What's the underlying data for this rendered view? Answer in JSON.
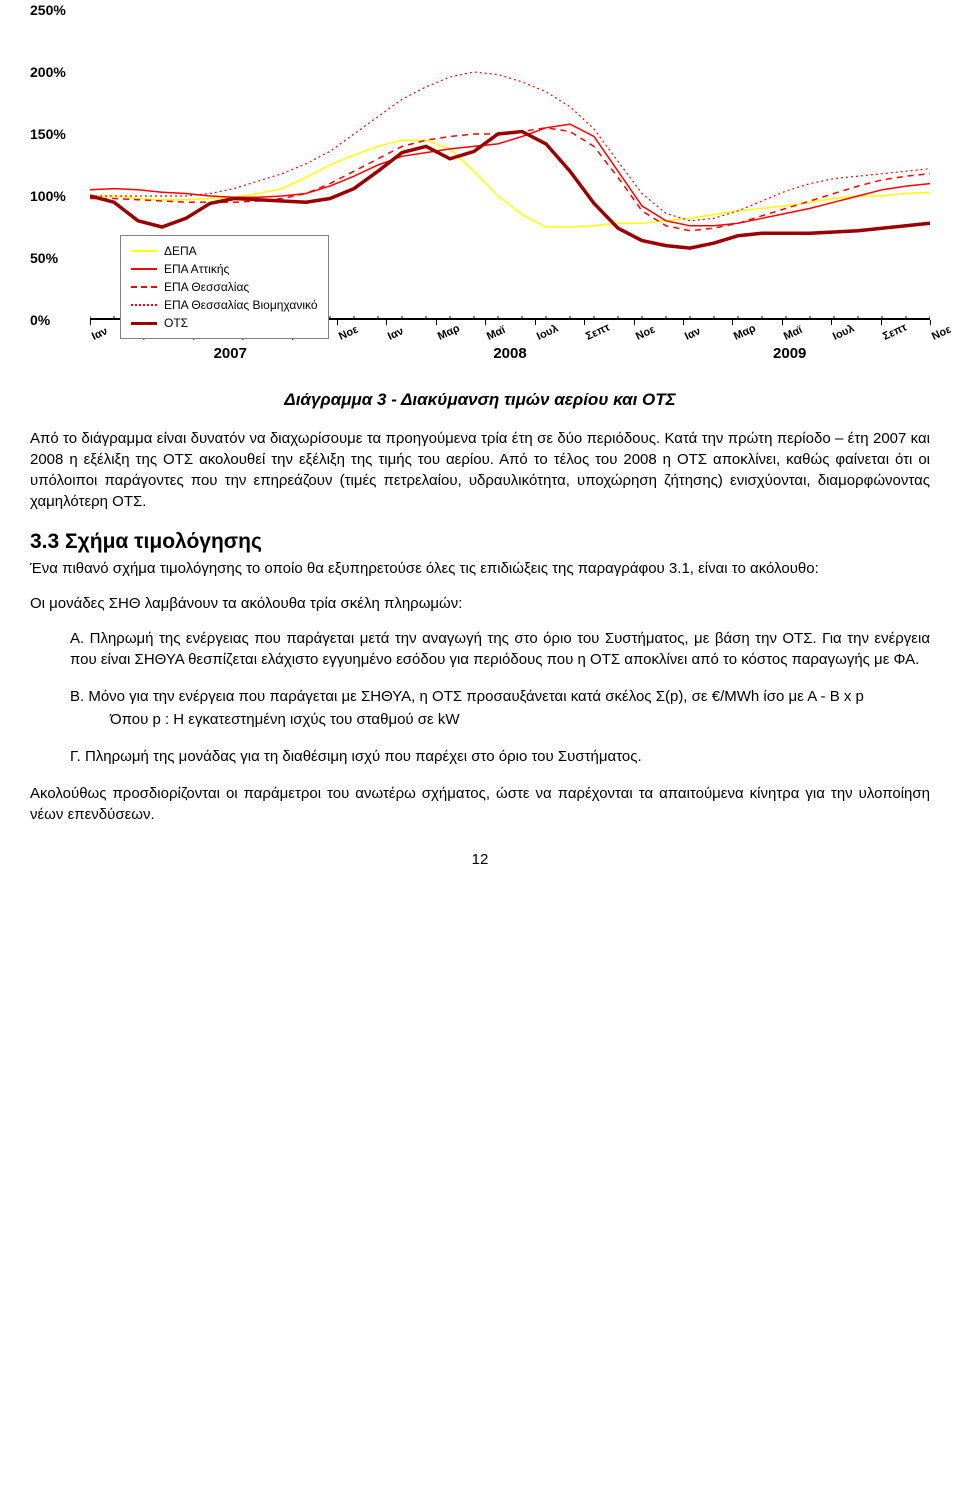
{
  "chart": {
    "type": "line",
    "ylim": [
      0,
      250
    ],
    "yticks": [
      0,
      50,
      100,
      150,
      200,
      250
    ],
    "ytick_labels": [
      "0%",
      "50%",
      "100%",
      "150%",
      "200%",
      "250%"
    ],
    "tick_fontsize": 14,
    "x_categories": [
      "Ιαν",
      "Μαρ",
      "Μαϊ",
      "Ιουλ",
      "Σεπτ",
      "Νοε",
      "Ιαν",
      "Μαρ",
      "Μαϊ",
      "Ιουλ",
      "Σεπτ",
      "Νοε",
      "Ιαν",
      "Μαρ",
      "Μαϊ",
      "Ιουλ",
      "Σεπτ",
      "Νοε"
    ],
    "years": [
      "2007",
      "2008",
      "2009"
    ],
    "year_positions_pct": [
      16.7,
      50,
      83.3
    ],
    "background_color": "#ffffff",
    "axis_color": "#000000",
    "y_tick_positions_pct": [
      100,
      80,
      60,
      40,
      20,
      0
    ],
    "series": [
      {
        "name": "ΔΕΠΑ",
        "color": "#ffff00",
        "dash": "solid",
        "width": 1.5,
        "values": [
          100,
          100,
          98,
          97,
          97,
          98,
          99,
          102,
          106,
          115,
          125,
          133,
          140,
          145,
          145,
          138,
          120,
          100,
          85,
          75,
          75,
          76,
          78,
          78,
          80,
          82,
          85,
          88,
          90,
          92,
          95,
          98,
          100,
          100,
          102,
          103
        ]
      },
      {
        "name": "ΕΠΑ Αττικής",
        "color": "#ff0000",
        "dash": "solid",
        "width": 1.5,
        "values": [
          105,
          106,
          105,
          103,
          102,
          100,
          99,
          99,
          100,
          102,
          108,
          116,
          125,
          132,
          135,
          138,
          140,
          142,
          148,
          155,
          158,
          148,
          120,
          92,
          80,
          76,
          76,
          78,
          82,
          86,
          90,
          95,
          100,
          105,
          108,
          110
        ]
      },
      {
        "name": "ΕΠΑ Θεσσαλίας",
        "color": "#ff0000",
        "dash": "6,5",
        "width": 1.5,
        "values": [
          98,
          98,
          97,
          96,
          95,
          95,
          95,
          96,
          98,
          102,
          110,
          120,
          130,
          140,
          145,
          148,
          150,
          150,
          152,
          155,
          152,
          140,
          115,
          88,
          76,
          72,
          74,
          78,
          84,
          90,
          96,
          102,
          108,
          113,
          116,
          118
        ]
      },
      {
        "name": "ΕΠΑ Θεσσαλίας Βιομηχανικό",
        "color": "#ff0000",
        "dash": "2,3",
        "width": 1.2,
        "values": [
          100,
          100,
          100,
          100,
          100,
          102,
          106,
          112,
          118,
          126,
          136,
          150,
          164,
          178,
          188,
          196,
          200,
          198,
          192,
          184,
          172,
          154,
          128,
          102,
          86,
          80,
          82,
          88,
          96,
          104,
          110,
          114,
          116,
          118,
          120,
          122
        ]
      },
      {
        "name": "ΟΤΣ",
        "color": "#990000",
        "dash": "solid",
        "width": 3.5,
        "values": [
          100,
          95,
          80,
          75,
          82,
          94,
          98,
          97,
          96,
          95,
          98,
          106,
          120,
          135,
          140,
          130,
          136,
          150,
          152,
          142,
          120,
          94,
          74,
          64,
          60,
          58,
          62,
          68,
          70,
          70,
          70,
          71,
          72,
          74,
          76,
          78
        ]
      }
    ]
  },
  "caption": "Διάγραμμα 3 - Διακύμανση τιμών αερίου και ΟΤΣ",
  "para1": "Από το διάγραμμα είναι δυνατόν να διαχωρίσουμε τα προηγούμενα τρία έτη σε δύο περιόδους. Κατά την πρώτη περίοδο – έτη 2007 και 2008 η εξέλιξη της ΟΤΣ ακολουθεί την εξέλιξη της τιμής του αερίου. Από το τέλος του 2008 η ΟΤΣ αποκλίνει, καθώς φαίνεται ότι οι υπόλοιποι παράγοντες που την επηρεάζουν (τιμές πετρελαίου, υδραυλικότητα, υποχώρηση ζήτησης) ενισχύονται, διαμορφώνοντας χαμηλότερη ΟΤΣ.",
  "section": {
    "number": "3.3",
    "title": "Σχήμα τιμολόγησης",
    "intro": "Ένα πιθανό σχήμα τιμολόγησης το οποίο θα εξυπηρετούσε όλες τις επιδιώξεις της παραγράφου 3.1, είναι το ακόλουθο:",
    "lead": "Οι μονάδες ΣΗΘ λαμβάνουν τα ακόλουθα τρία σκέλη πληρωμών:",
    "itemA": "Α. Πληρωμή της ενέργειας που παράγεται μετά την αναγωγή της στο όριο του Συστήματος, με βάση την ΟΤΣ. Για την ενέργεια που είναι ΣΗΘΥΑ θεσπίζεται ελάχιστο εγγυημένο εσόδου για περιόδους που η ΟΤΣ αποκλίνει από το κόστος παραγωγής με ΦΑ.",
    "itemB": "Β. Μόνο για την ενέργεια που παράγεται με ΣΗΘΥΑ, η ΟΤΣ προσαυξάνεται κατά σκέλος Σ(p), σε €/MWh ίσο με Α - Β x p",
    "itemB_sub": "Όπου p : Η εγκατεστημένη ισχύς του σταθμού σε kW",
    "itemC": "Γ. Πληρωμή της μονάδας για τη διαθέσιμη ισχύ που παρέχει στο όριο του Συστήματος.",
    "closing": "Ακολούθως προσδιορίζονται οι παράμετροι του ανωτέρω σχήματος, ώστε να παρέχονται τα απαιτούμενα κίνητρα για την υλοποίηση νέων επενδύσεων."
  },
  "page_number": "12",
  "colors": {
    "text": "#000000",
    "background": "#ffffff"
  }
}
